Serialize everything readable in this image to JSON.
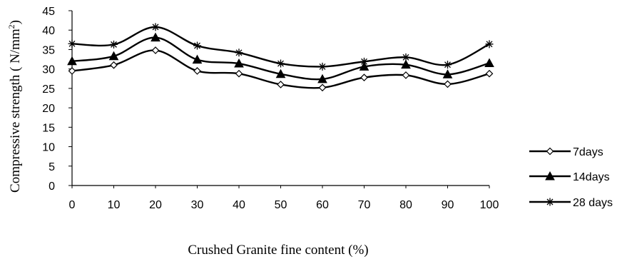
{
  "chart_data": {
    "type": "line",
    "xlabel": "Crushed Granite fine content (%)",
    "ylabel": "Compressive strength  ( N/mm",
    "ylabel_sup": "2",
    "ylabel_end": ")",
    "categories": [
      "0",
      "10",
      "20",
      "30",
      "40",
      "50",
      "60",
      "70",
      "80",
      "90",
      "100"
    ],
    "ylim": [
      0,
      45
    ],
    "yticks": [
      "0",
      "5",
      "10",
      "15",
      "20",
      "25",
      "30",
      "35",
      "40",
      "45"
    ],
    "grid": false,
    "legend_position": "right",
    "series": [
      {
        "name": "7days",
        "marker": "diamond",
        "values": [
          29.5,
          31,
          34.8,
          29.5,
          28.8,
          26,
          25.2,
          27.8,
          28.4,
          26.1,
          28.8
        ]
      },
      {
        "name": "14days",
        "marker": "triangle",
        "values": [
          32,
          33.3,
          38.1,
          32.4,
          31.4,
          28.7,
          27.4,
          30.6,
          31.1,
          28.6,
          31.5
        ]
      },
      {
        "name": "28 days",
        "marker": "star",
        "values": [
          36.5,
          36.3,
          40.8,
          36,
          34.2,
          31.4,
          30.6,
          31.9,
          33,
          31.1,
          36.4
        ]
      }
    ]
  }
}
